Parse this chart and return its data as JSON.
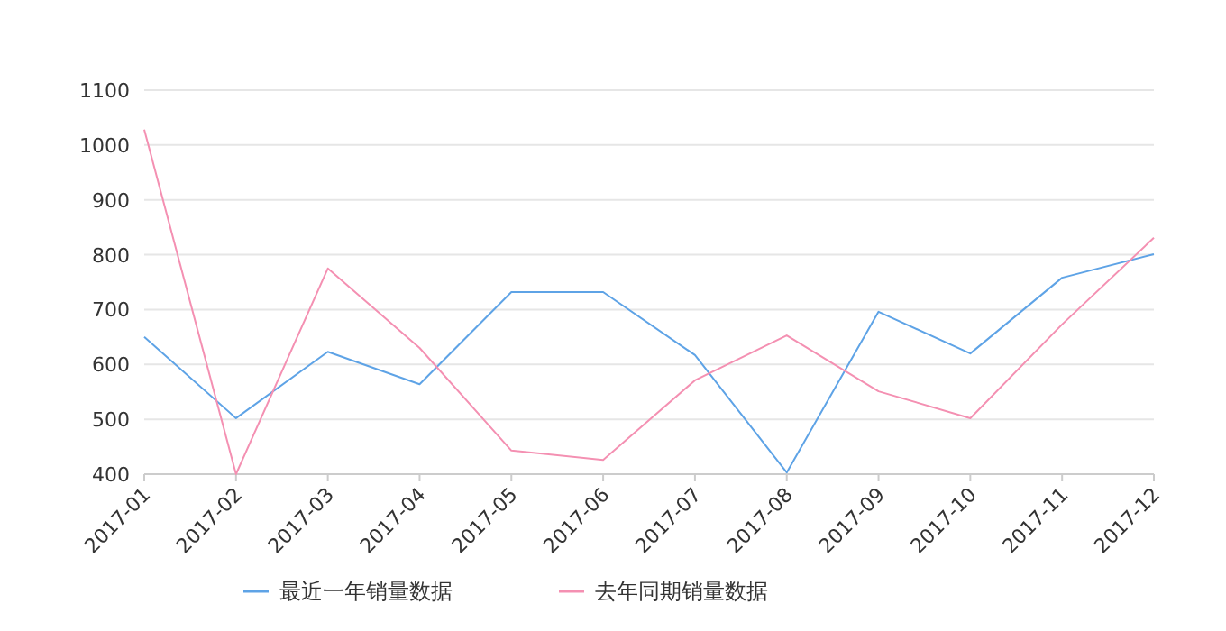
{
  "chart_data": {
    "type": "line",
    "categories": [
      "2017-01",
      "2017-02",
      "2017-03",
      "2017-04",
      "2017-05",
      "2017-06",
      "2017-07",
      "2017-08",
      "2017-09",
      "2017-10",
      "2017-11",
      "2017-12"
    ],
    "ylim": [
      400,
      1100
    ],
    "yticks": [
      400,
      500,
      600,
      700,
      800,
      900,
      1000,
      1100
    ],
    "grid": "y",
    "legend": "bottom",
    "series": [
      {
        "name": "最近一年销量数据",
        "color": "#5ea3e6",
        "values": [
          650,
          502,
          623,
          564,
          732,
          732,
          617,
          403,
          696,
          620,
          758,
          801
        ]
      },
      {
        "name": "去年同期销量数据",
        "color": "#f490b2",
        "values": [
          1028,
          400,
          775,
          630,
          443,
          426,
          571,
          653,
          551,
          502,
          673,
          831
        ]
      }
    ]
  }
}
